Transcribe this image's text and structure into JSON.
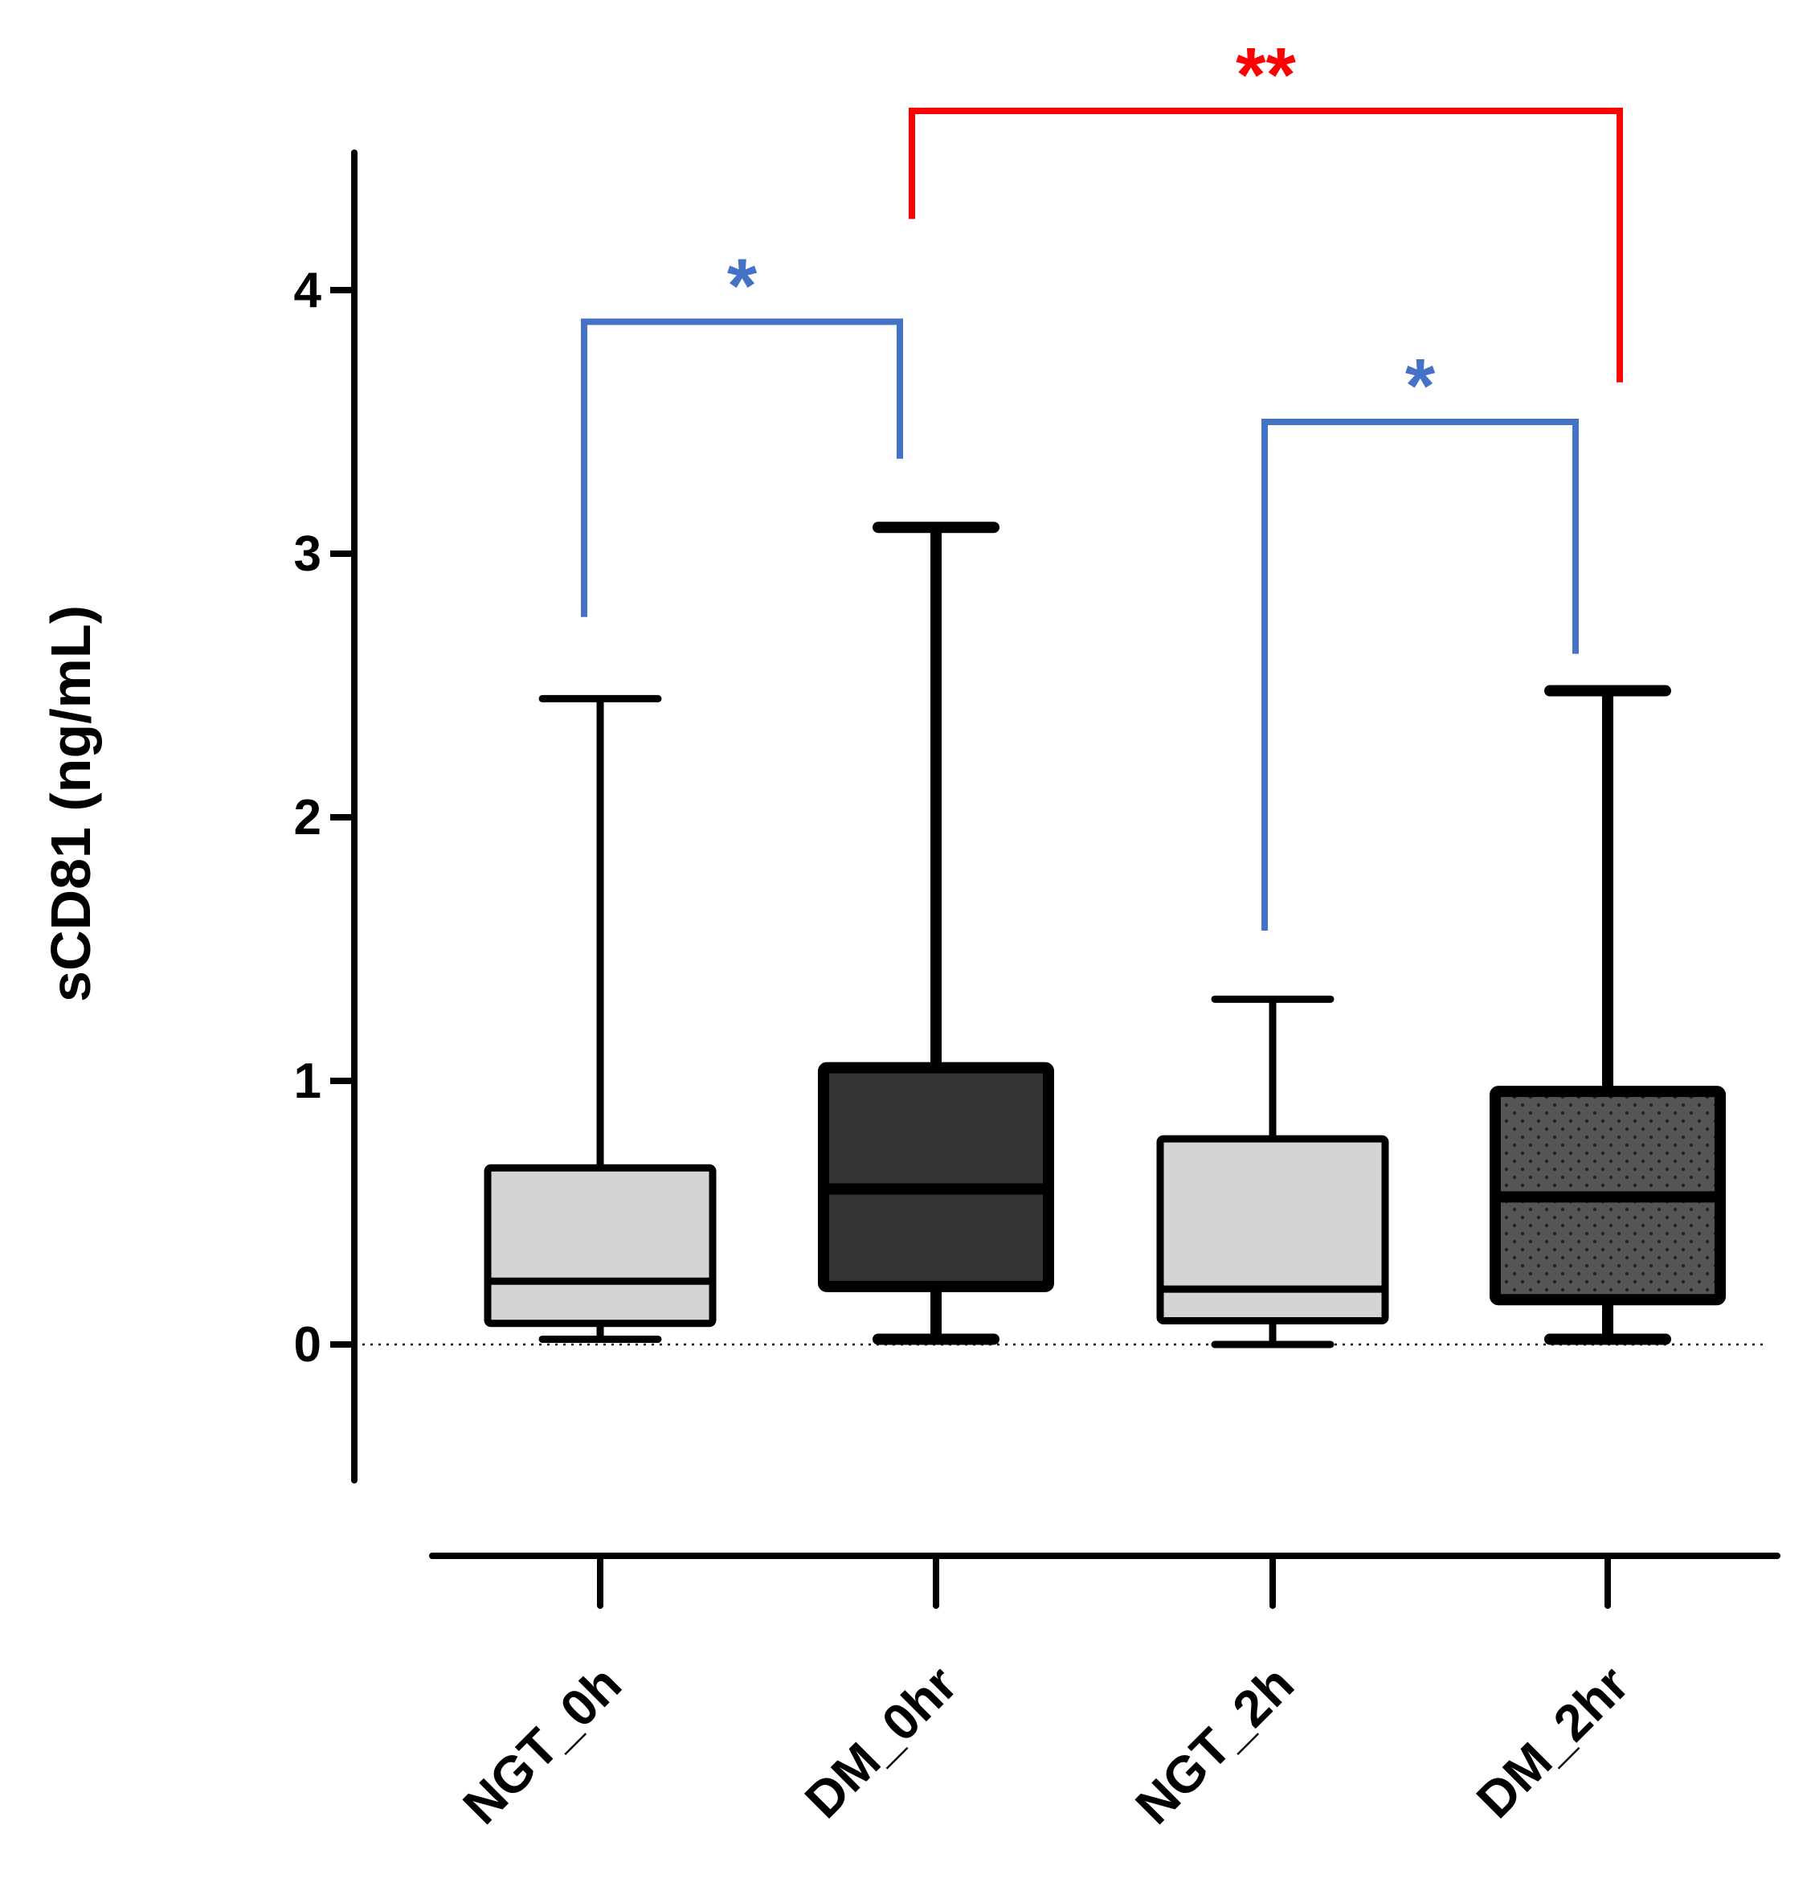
{
  "chart_data": {
    "type": "box",
    "ylabel": "sCD81 (ng/mL)",
    "xlabel": "",
    "ylim": [
      -0.5,
      4.5
    ],
    "yticks": [
      0,
      1,
      2,
      3,
      4
    ],
    "ytick_labels": [
      "0",
      "1",
      "2",
      "3",
      "4"
    ],
    "zero_reference_line": "dotted",
    "categories": [
      "NGT_0h",
      "DM_0hr",
      "NGT_2h",
      "DM_2hr"
    ],
    "boxes": [
      {
        "name": "NGT_0h",
        "min": 0.02,
        "q1": 0.08,
        "median": 0.24,
        "q3": 0.67,
        "max": 2.45,
        "fill": "#d4d4d4",
        "pattern": "none"
      },
      {
        "name": "DM_0hr",
        "min": 0.02,
        "q1": 0.22,
        "median": 0.59,
        "q3": 1.05,
        "max": 3.1,
        "fill": "#333333",
        "pattern": "none"
      },
      {
        "name": "NGT_2h",
        "min": 0.0,
        "q1": 0.09,
        "median": 0.21,
        "q3": 0.78,
        "max": 1.31,
        "fill": "#d4d4d4",
        "pattern": "none"
      },
      {
        "name": "DM_2hr",
        "min": 0.02,
        "q1": 0.17,
        "median": 0.56,
        "q3": 0.96,
        "max": 2.48,
        "fill": "#555555",
        "pattern": "dotted"
      }
    ],
    "significance": [
      {
        "from": "NGT_0h",
        "to": "DM_0hr",
        "label": "*",
        "color": "#4472c4",
        "y": 3.88,
        "left_end": 2.76,
        "right_end": 3.36
      },
      {
        "from": "NGT_2h",
        "to": "DM_2hr",
        "label": "*",
        "color": "#4472c4",
        "y": 3.5,
        "left_end": 1.57,
        "right_end": 2.62
      },
      {
        "from": "DM_0hr",
        "to": "DM_2hr",
        "label": "**",
        "color": "#ff0000",
        "y": 4.68,
        "left_end": 4.27,
        "right_end": 3.65
      }
    ]
  }
}
